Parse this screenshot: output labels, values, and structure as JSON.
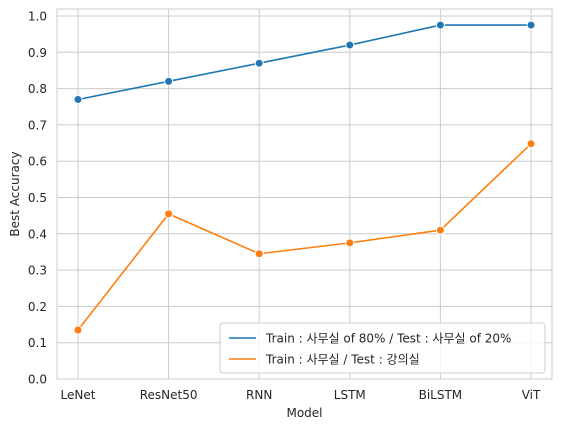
{
  "chart_data": {
    "type": "line",
    "categories": [
      "LeNet",
      "ResNet50",
      "RNN",
      "LSTM",
      "BiLSTM",
      "ViT"
    ],
    "series": [
      {
        "name": "Train : 사무실 of 80% / Test : 사무실 of 20%",
        "color": "#1f77b4",
        "values": [
          0.77,
          0.82,
          0.87,
          0.92,
          0.975,
          0.975
        ]
      },
      {
        "name": "Train : 사무실 / Test : 강의실",
        "color": "#ff7f0e",
        "values": [
          0.135,
          0.455,
          0.345,
          0.375,
          0.41,
          0.648
        ]
      }
    ],
    "xlabel": "Model",
    "ylabel": "Best Accuracy",
    "ylim": [
      0.0,
      1.0
    ],
    "yticks": [
      "0.0",
      "0.1",
      "0.2",
      "0.3",
      "0.4",
      "0.5",
      "0.6",
      "0.7",
      "0.8",
      "0.9",
      "1.0"
    ],
    "grid": true,
    "legend_position": "bottom-right",
    "marker": "circle"
  }
}
